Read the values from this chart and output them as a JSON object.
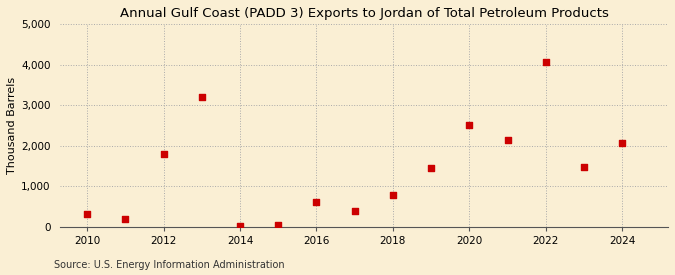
{
  "title": "Annual Gulf Coast (PADD 3) Exports to Jordan of Total Petroleum Products",
  "ylabel": "Thousand Barrels",
  "source": "Source: U.S. Energy Information Administration",
  "background_color": "#faefd4",
  "years": [
    2010,
    2011,
    2012,
    2013,
    2014,
    2015,
    2016,
    2017,
    2018,
    2019,
    2020,
    2021,
    2022,
    2023,
    2024
  ],
  "values": [
    330,
    190,
    1800,
    3200,
    30,
    50,
    620,
    400,
    800,
    1450,
    2520,
    2130,
    4070,
    1480,
    2080
  ],
  "marker_color": "#cc0000",
  "marker_size": 5,
  "ylim": [
    0,
    5000
  ],
  "yticks": [
    0,
    1000,
    2000,
    3000,
    4000,
    5000
  ],
  "xlim": [
    2009.3,
    2025.2
  ],
  "xticks": [
    2010,
    2012,
    2014,
    2016,
    2018,
    2020,
    2022,
    2024
  ],
  "title_fontsize": 9.5,
  "ylabel_fontsize": 8,
  "tick_fontsize": 7.5,
  "source_fontsize": 7
}
